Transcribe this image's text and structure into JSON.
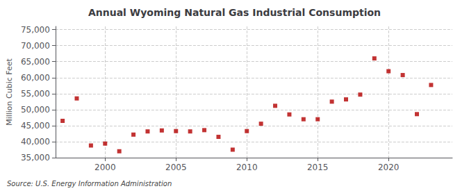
{
  "chart_data": {
    "type": "scatter",
    "title": "Annual Wyoming Natural Gas Industrial Consumption",
    "ylabel": "Million Cubic Feet",
    "source": "Source: U.S. Energy Information Administration",
    "x": [
      1997,
      1998,
      1999,
      2000,
      2001,
      2002,
      2003,
      2004,
      2005,
      2006,
      2007,
      2008,
      2009,
      2010,
      2011,
      2012,
      2013,
      2014,
      2015,
      2016,
      2017,
      2018,
      2019,
      2020,
      2021,
      2022,
      2023
    ],
    "values": [
      46500,
      53500,
      38800,
      39400,
      37000,
      42200,
      43200,
      43500,
      43300,
      43200,
      43600,
      41500,
      37500,
      43300,
      45600,
      51200,
      48500,
      47000,
      47000,
      52500,
      53200,
      54700,
      66000,
      62000,
      60800,
      48600,
      57700
    ],
    "color": "#b30000",
    "marker": "square",
    "xlim": [
      1996.5,
      2024.5
    ],
    "xticks": [
      2000,
      2005,
      2010,
      2015,
      2020
    ],
    "ylim": [
      35000,
      76000
    ],
    "yticks": [
      {
        "value": 35000,
        "label": "35,000"
      },
      {
        "value": 40000,
        "label": "40,000"
      },
      {
        "value": 45000,
        "label": "45,000"
      },
      {
        "value": 50000,
        "label": "50,000"
      },
      {
        "value": 55000,
        "label": "55,000"
      },
      {
        "value": 60000,
        "label": "60,000"
      },
      {
        "value": 65000,
        "label": "65,000"
      },
      {
        "value": 70000,
        "label": "70,000"
      },
      {
        "value": 75000,
        "label": "75,000"
      }
    ],
    "grid": true
  }
}
